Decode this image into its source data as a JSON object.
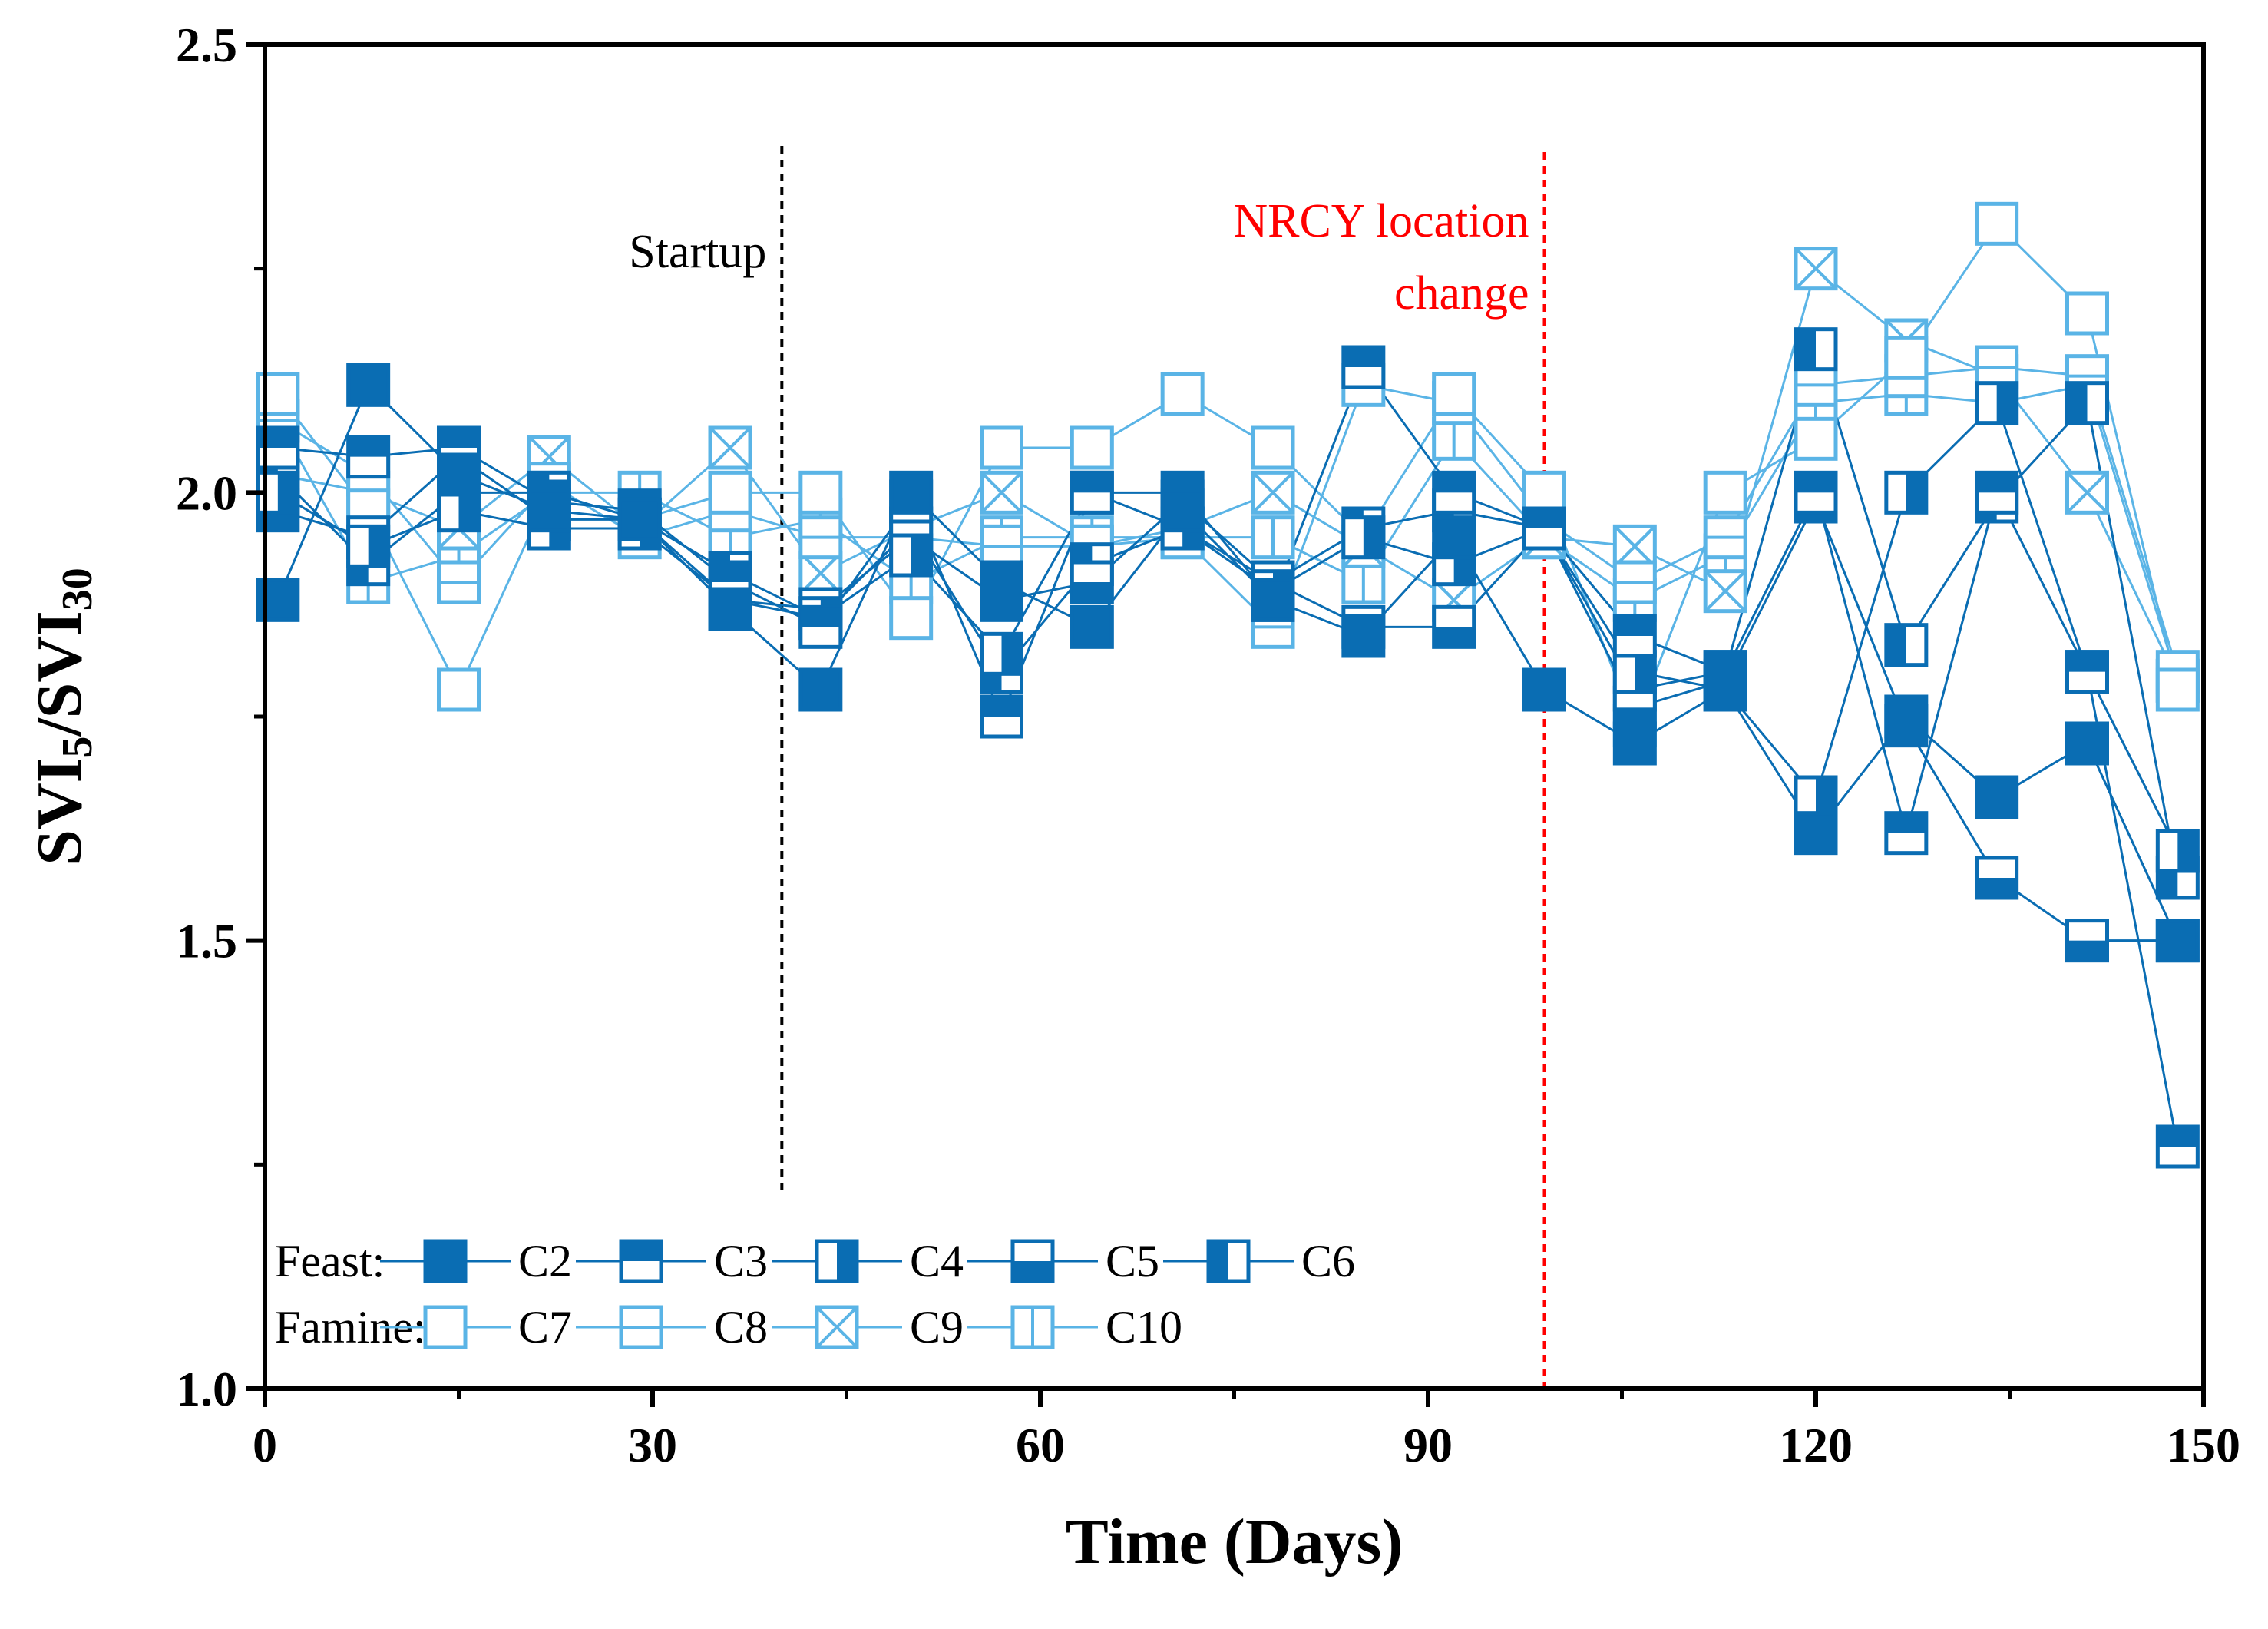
{
  "chart_data": {
    "type": "line",
    "title": "",
    "xlabel": "Time (Days)",
    "ylabel": {
      "prefix": "SVI",
      "sub1": "5",
      "sep": "/SVI",
      "sub2": "30"
    },
    "xlim": [
      0,
      150
    ],
    "ylim": [
      1.0,
      2.5
    ],
    "xticks": [
      "0",
      "30",
      "60",
      "90",
      "120",
      "150"
    ],
    "yticks": [
      "1.0",
      "1.5",
      "2.0",
      "2.5"
    ],
    "annotations": [
      {
        "text": "Startup",
        "x": 40,
        "color": "#000000"
      },
      {
        "text_line1": "NRCY location",
        "text_line2": "change",
        "x": 99,
        "color": "#ff0000"
      }
    ],
    "x": [
      1,
      8,
      15,
      22,
      29,
      36,
      43,
      50,
      57,
      64,
      71,
      78,
      85,
      92,
      99,
      106,
      113,
      120,
      127,
      134,
      141,
      148
    ],
    "series": [
      {
        "name": "C2",
        "group": "Feast",
        "marker": "filled",
        "values": [
          1.88,
          2.12,
          2.02,
          1.98,
          1.97,
          1.87,
          1.78,
          2.0,
          1.9,
          1.85,
          1.98,
          1.88,
          1.84,
          1.95,
          1.78,
          1.72,
          1.78,
          1.62,
          1.75,
          1.66,
          1.72,
          1.5
        ]
      },
      {
        "name": "C3",
        "group": "Feast",
        "marker": "top-half",
        "values": [
          2.05,
          2.04,
          2.05,
          1.99,
          1.98,
          1.9,
          1.85,
          1.99,
          1.75,
          2.0,
          2.0,
          1.88,
          2.14,
          2.0,
          1.96,
          1.84,
          1.8,
          2.0,
          1.62,
          2.0,
          1.8,
          1.27
        ]
      },
      {
        "name": "C4",
        "group": "Feast",
        "marker": "right-half",
        "values": [
          2.0,
          1.94,
          1.98,
          1.96,
          1.96,
          1.88,
          1.86,
          1.93,
          1.82,
          2.0,
          1.96,
          1.89,
          1.95,
          1.92,
          1.96,
          1.8,
          1.78,
          1.66,
          2.0,
          2.1,
          1.8,
          1.6
        ]
      },
      {
        "name": "C5",
        "group": "Feast",
        "marker": "bottom-half",
        "values": [
          1.98,
          1.95,
          2.04,
          1.97,
          1.97,
          1.88,
          1.87,
          1.95,
          1.88,
          1.9,
          1.99,
          1.9,
          1.85,
          1.85,
          1.96,
          1.76,
          1.79,
          1.99,
          1.74,
          1.57,
          1.5,
          1.5
        ]
      },
      {
        "name": "C6",
        "group": "Feast",
        "marker": "left-half",
        "values": [
          2.02,
          1.92,
          2.0,
          2.0,
          1.97,
          1.91,
          1.86,
          1.96,
          1.8,
          1.92,
          1.96,
          1.9,
          1.96,
          1.98,
          1.96,
          1.78,
          1.8,
          2.16,
          1.83,
          1.99,
          2.1,
          1.57
        ]
      },
      {
        "name": "C7",
        "group": "Famine",
        "marker": "open",
        "values": [
          2.11,
          1.98,
          1.78,
          2.0,
          1.97,
          2.0,
          2.0,
          1.86,
          2.05,
          2.05,
          2.11,
          2.05,
          1.95,
          2.11,
          2.0,
          1.74,
          2.0,
          2.06,
          2.15,
          2.3,
          2.2,
          1.78
        ]
      },
      {
        "name": "C8",
        "group": "Famine",
        "marker": "h-line",
        "values": [
          2.08,
          2.02,
          1.9,
          2.01,
          1.95,
          1.98,
          1.95,
          1.95,
          1.94,
          1.94,
          1.95,
          1.85,
          2.12,
          2.1,
          1.97,
          1.9,
          1.95,
          2.12,
          2.13,
          2.14,
          2.13,
          1.8
        ]
      },
      {
        "name": "C9",
        "group": "Famine",
        "marker": "cross",
        "values": [
          2.02,
          2.0,
          1.96,
          2.04,
          1.96,
          2.05,
          1.91,
          1.96,
          2.0,
          1.94,
          1.96,
          2.0,
          1.94,
          1.88,
          1.95,
          1.94,
          1.89,
          2.25,
          2.17,
          2.13,
          2.0,
          1.79
        ]
      },
      {
        "name": "C10",
        "group": "Famine",
        "marker": "v-line",
        "values": [
          2.08,
          1.9,
          1.93,
          2.0,
          2.0,
          1.95,
          1.97,
          1.9,
          1.95,
          1.95,
          1.95,
          1.95,
          1.9,
          2.06,
          1.95,
          1.88,
          1.93,
          2.1,
          2.11,
          2.1,
          2.12,
          1.79
        ]
      }
    ],
    "legend": {
      "position": "bottom-left",
      "groups": [
        {
          "label": "Feast:",
          "items": [
            "C2",
            "C3",
            "C4",
            "C5",
            "C6"
          ]
        },
        {
          "label": "Famine:",
          "items": [
            "C7",
            "C8",
            "C9",
            "C10"
          ]
        }
      ]
    },
    "colors": {
      "feast": "#0a6db3",
      "famine": "#5ab4e6",
      "axis": "#000000",
      "startup": "#000000",
      "change": "#ff0000"
    }
  }
}
